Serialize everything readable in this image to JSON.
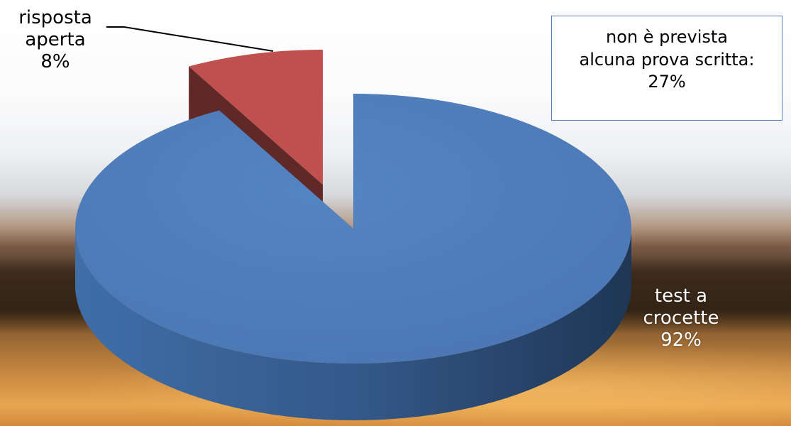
{
  "chart_data": {
    "type": "pie",
    "title": "",
    "slices": [
      {
        "label_lines": [
          "test a",
          "crocette",
          "92%"
        ],
        "value": 92,
        "color": "#4f7fbc"
      },
      {
        "label_lines": [
          "risposta",
          "aperta",
          "8%"
        ],
        "value": 8,
        "color": "#c0504d"
      }
    ],
    "legend": "none",
    "style": "3d-exploded"
  },
  "note": {
    "lines": [
      "non è prevista",
      "alcuna prova scritta:",
      "27%"
    ]
  }
}
